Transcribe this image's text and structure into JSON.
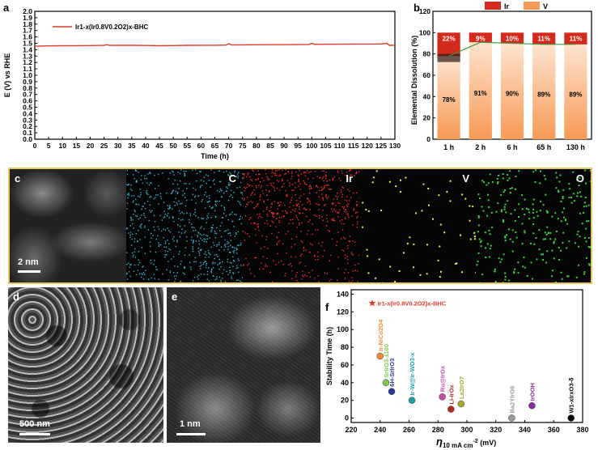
{
  "panels": {
    "a": "a",
    "b": "b",
    "c": "c",
    "d": "d",
    "e": "e",
    "f": "f"
  },
  "chart_data": [
    {
      "id": "a",
      "type": "line",
      "xlabel": "Time (h)",
      "ylabel": "E (V) vs RHE",
      "xlim": [
        0,
        130
      ],
      "ylim": [
        0.0,
        2.0
      ],
      "xticks": [
        "0",
        "5",
        "10",
        "15",
        "20",
        "25",
        "30",
        "35",
        "40",
        "45",
        "50",
        "55",
        "60",
        "65",
        "70",
        "75",
        "80",
        "85",
        "90",
        "95",
        "100",
        "105",
        "110",
        "115",
        "120",
        "125",
        "130"
      ],
      "yticks": [
        "0.0",
        "0.1",
        "0.2",
        "0.3",
        "0.4",
        "0.5",
        "0.6",
        "0.7",
        "0.8",
        "0.9",
        "1.0",
        "1.1",
        "1.2",
        "1.3",
        "1.4",
        "1.5",
        "1.6",
        "1.7",
        "1.8",
        "1.9",
        "2.0"
      ],
      "legend_position": "top-left",
      "color": "#e03a2a",
      "series": [
        {
          "name": "Ir1-x(Ir0.8V0.2O2)x-BHC",
          "x": [
            0,
            5,
            10,
            15,
            20,
            25,
            26,
            27,
            30,
            35,
            40,
            45,
            50,
            55,
            60,
            65,
            69,
            70,
            71,
            75,
            80,
            85,
            90,
            95,
            99,
            100,
            101,
            105,
            110,
            115,
            120,
            125,
            127,
            128,
            130
          ],
          "y": [
            1.455,
            1.46,
            1.462,
            1.463,
            1.465,
            1.467,
            1.48,
            1.467,
            1.468,
            1.468,
            1.466,
            1.462,
            1.465,
            1.468,
            1.469,
            1.47,
            1.472,
            1.495,
            1.474,
            1.476,
            1.477,
            1.478,
            1.479,
            1.48,
            1.482,
            1.5,
            1.483,
            1.485,
            1.486,
            1.488,
            1.489,
            1.49,
            1.5,
            1.468,
            1.47
          ]
        }
      ]
    },
    {
      "id": "b",
      "type": "bar",
      "stacked": true,
      "ylabel": "Elemental Dissolution (%)",
      "ylim": [
        0,
        120
      ],
      "yticks": [
        "0",
        "20",
        "40",
        "60",
        "80",
        "100",
        "120"
      ],
      "categories": [
        "1 h",
        "2 h",
        "6 h",
        "65 h",
        "130 h"
      ],
      "legend_position": "top-center",
      "series": [
        {
          "name": "V",
          "color": "#f79a55",
          "values": [
            78,
            91,
            90,
            89,
            89
          ],
          "labels": [
            "78%",
            "91%",
            "90%",
            "89%",
            "89%"
          ]
        },
        {
          "name": "Ir",
          "color": "#d42a1e",
          "values": [
            22,
            9,
            10,
            11,
            11
          ],
          "labels": [
            "22%",
            "9%",
            "10%",
            "11%",
            "11%"
          ]
        }
      ],
      "trend_line_color": "#3a9a3a"
    },
    {
      "id": "f",
      "type": "scatter",
      "xlabel": "η10 mA cm-2 (mV)",
      "xlabel_main": "η",
      "xlabel_sub": "10 mA cm",
      "xlabel_sup": "-2",
      "xlabel_unit": " (mV)",
      "ylabel": "Stability Time (h)",
      "xlim": [
        220,
        380
      ],
      "ylim": [
        -5,
        145
      ],
      "xticks": [
        "220",
        "240",
        "260",
        "280",
        "300",
        "320",
        "340",
        "360",
        "380"
      ],
      "yticks": [
        "0",
        "20",
        "40",
        "60",
        "80",
        "100",
        "120",
        "140"
      ],
      "highlight": {
        "label": "Ir1-x(Ir0.8V0.2O2)x-BHC",
        "x": 236,
        "y": 130,
        "color": "#e03a2a"
      },
      "points": [
        {
          "label": "Ir-NiCo2O4",
          "x": 240,
          "y": 70,
          "color": "#f08a3a"
        },
        {
          "label": "SrIrO3-1100",
          "x": 244,
          "y": 40,
          "color": "#7ec850"
        },
        {
          "label": "6H-SrIrO3",
          "x": 248,
          "y": 30,
          "color": "#2a3a9a"
        },
        {
          "label": "Ir-W@Ir-WO3-x",
          "x": 262,
          "y": 20,
          "color": "#1ba0a8"
        },
        {
          "label": "Ru@IrOx",
          "x": 283,
          "y": 24,
          "color": "#c64aa8"
        },
        {
          "label": "Li-IrOx",
          "x": 289,
          "y": 10,
          "color": "#b02a22"
        },
        {
          "label": "La2IrO7",
          "x": 296,
          "y": 16,
          "color": "#a8a82a"
        },
        {
          "label": "Ba2YIrO6",
          "x": 331,
          "y": 0,
          "color": "#9a9a9a"
        },
        {
          "label": "IrOOH",
          "x": 345,
          "y": 14,
          "color": "#8a2aa0"
        },
        {
          "label": "W1-xIrxO3-δ",
          "x": 372,
          "y": 0,
          "color": "#000000"
        }
      ]
    }
  ],
  "micrographs": {
    "c": {
      "scale": "2 nm"
    },
    "maps": [
      {
        "element": "C",
        "color": "#3ab6d8"
      },
      {
        "element": "Ir",
        "color": "#ff2a2a"
      },
      {
        "element": "V",
        "color": "#f0f040"
      },
      {
        "element": "O",
        "color": "#3ad43a"
      }
    ],
    "d": {
      "scale": "500 nm"
    },
    "e": {
      "scale": "1 nm"
    }
  }
}
